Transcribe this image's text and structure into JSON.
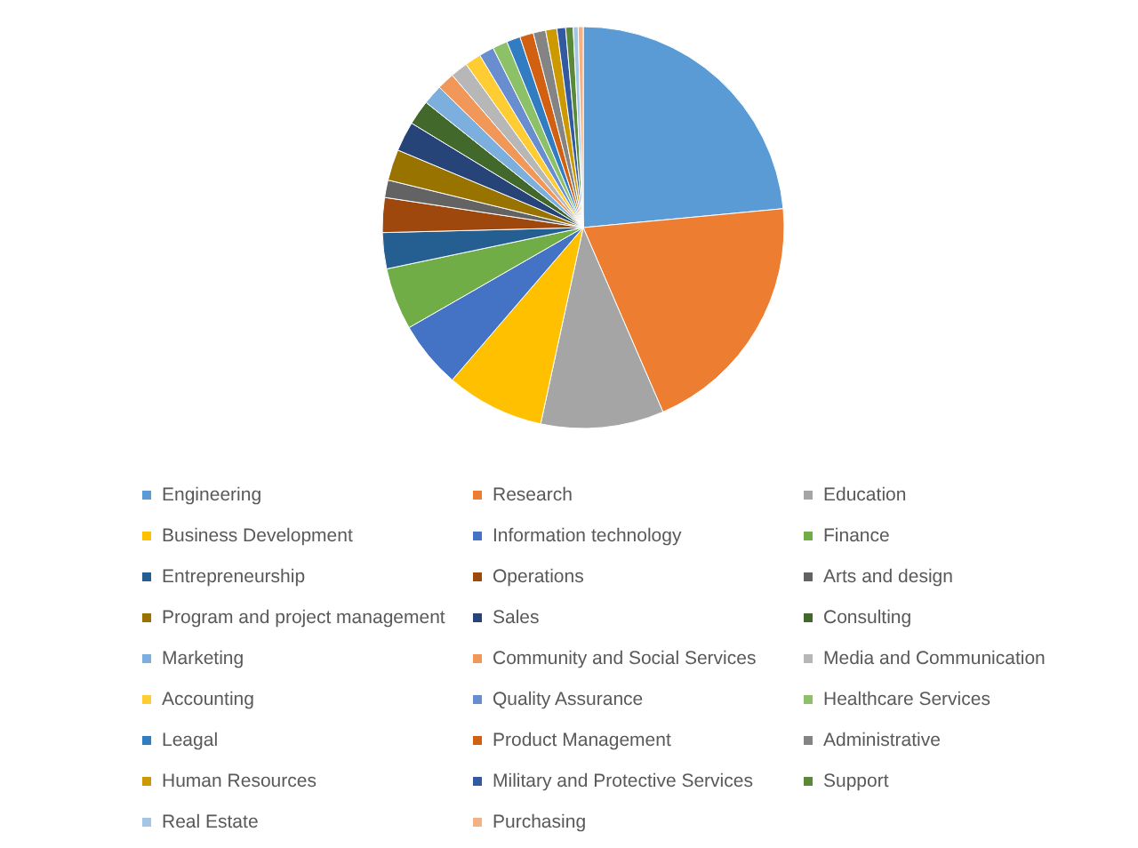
{
  "chart_data": {
    "type": "pie",
    "legend": "bottom",
    "categories": [
      "Engineering",
      "Research",
      "Education",
      "Business Development",
      "Information technology",
      "Finance",
      "Entrepreneurship",
      "Operations",
      "Arts and design",
      "Program and project management",
      "Sales",
      "Consulting",
      "Marketing",
      "Community and Social Services",
      "Media and Communication",
      "Accounting",
      "Quality Assurance",
      "Healthcare Services",
      "Leagal",
      "Product Management",
      "Administrative",
      "Human Resources",
      "Military and Protective Services",
      "Support",
      "Real Estate",
      "Purchasing"
    ],
    "values": [
      23.5,
      20,
      9.9,
      7.9,
      5.4,
      5.0,
      2.9,
      2.8,
      1.4,
      2.5,
      2.4,
      2.0,
      1.6,
      1.4,
      1.4,
      1.3,
      1.2,
      1.2,
      1.1,
      1.1,
      1.0,
      0.9,
      0.7,
      0.6,
      0.4,
      0.4
    ],
    "colors": [
      "#5b9bd5",
      "#ed7d31",
      "#a5a5a5",
      "#ffc000",
      "#4472c4",
      "#70ad47",
      "#255e91",
      "#9e480e",
      "#636363",
      "#997300",
      "#264478",
      "#43682b",
      "#7cafdd",
      "#f1975a",
      "#b7b7b7",
      "#ffcd33",
      "#698ed0",
      "#8cc168",
      "#327dc2",
      "#d26012",
      "#848484",
      "#cc9a00",
      "#335aa1",
      "#5a8a39",
      "#a3c6e7",
      "#f4b183"
    ]
  }
}
